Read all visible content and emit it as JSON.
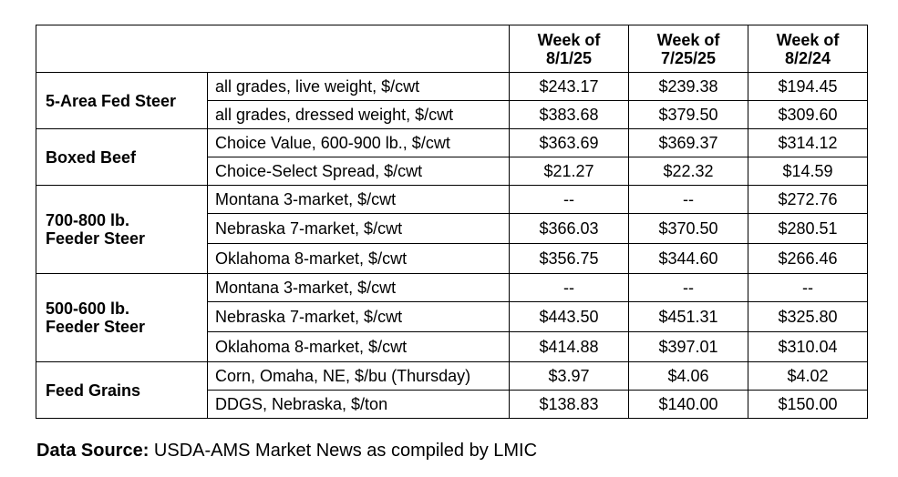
{
  "table": {
    "headers": [
      "Week of\n8/1/25",
      "Week of\n7/25/25",
      "Week of\n8/2/24"
    ],
    "header_lines": [
      [
        "Week of",
        "8/1/25"
      ],
      [
        "Week of",
        "7/25/25"
      ],
      [
        "Week of",
        "8/2/24"
      ]
    ],
    "groups": [
      {
        "name": "5-Area Fed Steer",
        "name_lines": [
          "5-Area Fed Steer"
        ],
        "rows": [
          {
            "label": "all grades, live weight, $/cwt",
            "values": [
              "$243.17",
              "$239.38",
              "$194.45"
            ]
          },
          {
            "label": "all grades, dressed weight, $/cwt",
            "values": [
              "$383.68",
              "$379.50",
              "$309.60"
            ]
          }
        ]
      },
      {
        "name": "Boxed Beef",
        "name_lines": [
          "Boxed Beef"
        ],
        "rows": [
          {
            "label": "Choice Value, 600-900 lb., $/cwt",
            "values": [
              "$363.69",
              "$369.37",
              "$314.12"
            ]
          },
          {
            "label": "Choice-Select Spread, $/cwt",
            "values": [
              "$21.27",
              "$22.32",
              "$14.59"
            ]
          }
        ]
      },
      {
        "name": "700-800 lb. Feeder Steer",
        "name_lines": [
          "700-800 lb.",
          "Feeder Steer"
        ],
        "rows": [
          {
            "label": "Montana 3-market, $/cwt",
            "values": [
              "--",
              "--",
              "$272.76"
            ]
          },
          {
            "label": "Nebraska 7-market, $/cwt",
            "values": [
              "$366.03",
              "$370.50",
              "$280.51"
            ]
          },
          {
            "label": "Oklahoma 8-market, $/cwt",
            "values": [
              "$356.75",
              "$344.60",
              "$266.46"
            ]
          }
        ]
      },
      {
        "name": "500-600 lb. Feeder Steer",
        "name_lines": [
          "500-600 lb.",
          "Feeder Steer"
        ],
        "rows": [
          {
            "label": "Montana 3-market, $/cwt",
            "values": [
              "--",
              "--",
              "--"
            ]
          },
          {
            "label": "Nebraska 7-market, $/cwt",
            "values": [
              "$443.50",
              "$451.31",
              "$325.80"
            ]
          },
          {
            "label": "Oklahoma 8-market, $/cwt",
            "values": [
              "$414.88",
              "$397.01",
              "$310.04"
            ]
          }
        ]
      },
      {
        "name": "Feed Grains",
        "name_lines": [
          "Feed Grains"
        ],
        "rows": [
          {
            "label": "Corn, Omaha, NE, $/bu (Thursday)",
            "values": [
              "$3.97",
              "$4.06",
              "$4.02"
            ]
          },
          {
            "label": "DDGS, Nebraska, $/ton",
            "values": [
              "$138.83",
              "$140.00",
              "$150.00"
            ]
          }
        ]
      }
    ]
  },
  "source": {
    "label": "Data Source:",
    "text": " USDA-AMS Market News as compiled by LMIC"
  }
}
